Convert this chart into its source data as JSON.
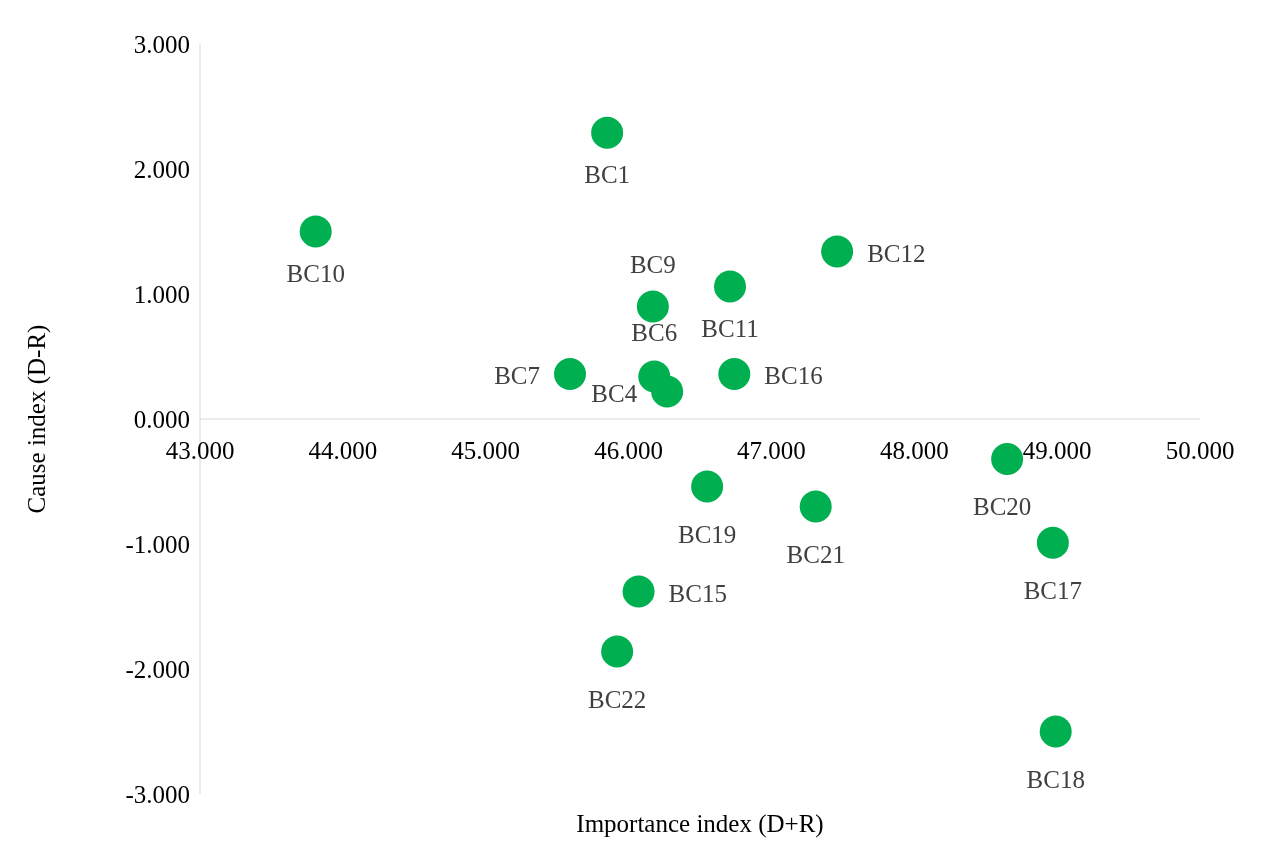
{
  "chart_data": {
    "type": "scatter",
    "xlabel": "Importance index (D+R)",
    "ylabel": "Cause index (D-R)",
    "x": [
      45.85,
      43.81,
      47.46,
      46.71,
      46.17,
      45.59,
      46.18,
      46.27,
      46.74,
      48.65,
      46.55,
      47.31,
      48.97,
      46.07,
      45.92,
      48.99
    ],
    "values": [
      2.29,
      1.5,
      1.34,
      1.06,
      0.9,
      0.36,
      0.34,
      0.22,
      0.36,
      -0.32,
      -0.54,
      -0.7,
      -0.99,
      -1.38,
      -1.86,
      -2.5
    ],
    "color": "#00b050",
    "marker": "circle",
    "grid": false,
    "xlim": [
      43,
      50
    ],
    "ylim": [
      -3,
      3
    ],
    "xticks": [
      {
        "value": 43,
        "label": "43.000"
      },
      {
        "value": 44,
        "label": "44.000"
      },
      {
        "value": 45,
        "label": "45.000"
      },
      {
        "value": 46,
        "label": "46.000"
      },
      {
        "value": 47,
        "label": "47.000"
      },
      {
        "value": 48,
        "label": "48.000"
      },
      {
        "value": 49,
        "label": "49.000"
      },
      {
        "value": 50,
        "label": "50.000"
      }
    ],
    "yticks": [
      {
        "value": -3,
        "label": "-3.000"
      },
      {
        "value": -2,
        "label": "-2.000"
      },
      {
        "value": -1,
        "label": "-1.000"
      },
      {
        "value": 0,
        "label": "0.000"
      },
      {
        "value": 1,
        "label": "1.000"
      },
      {
        "value": 2,
        "label": "2.000"
      },
      {
        "value": 3,
        "label": "3.000"
      }
    ],
    "annotations": [
      {
        "text": "BC1",
        "x": 45.85,
        "y": 2.29
      },
      {
        "text": "BC10",
        "x": 43.81,
        "y": 1.5
      },
      {
        "text": "BC12",
        "x": 47.46,
        "y": 1.34
      },
      {
        "text": "BC11",
        "x": 46.71,
        "y": 1.06
      },
      {
        "text": "BC9",
        "x": 46.17,
        "y": 0.9
      },
      {
        "text": "BC7",
        "x": 45.59,
        "y": 0.36
      },
      {
        "text": "BC6",
        "x": 46.18,
        "y": 0.34
      },
      {
        "text": "BC4",
        "x": 46.27,
        "y": 0.22
      },
      {
        "text": "BC16",
        "x": 46.74,
        "y": 0.36
      },
      {
        "text": "BC20",
        "x": 48.65,
        "y": -0.32
      },
      {
        "text": "BC19",
        "x": 46.55,
        "y": -0.54
      },
      {
        "text": "BC21",
        "x": 47.31,
        "y": -0.7
      },
      {
        "text": "BC17",
        "x": 48.97,
        "y": -0.99
      },
      {
        "text": "BC15",
        "x": 46.07,
        "y": -1.38
      },
      {
        "text": "BC22",
        "x": 45.92,
        "y": -1.86
      },
      {
        "text": "BC18",
        "x": 48.99,
        "y": -2.5
      }
    ]
  }
}
